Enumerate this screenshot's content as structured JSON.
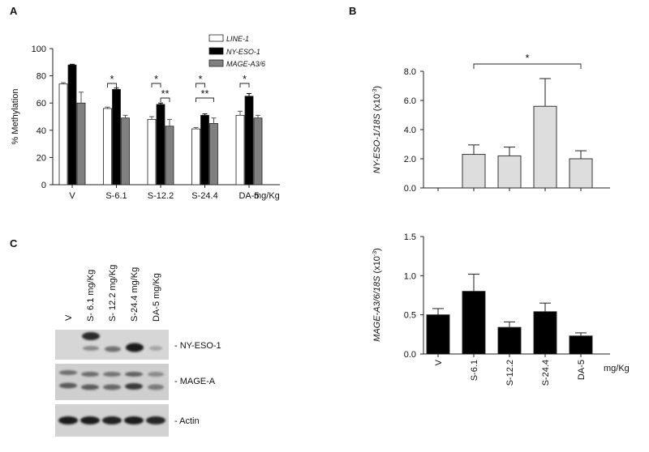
{
  "panels": {
    "a": "A",
    "b": "B",
    "c": "C"
  },
  "colors": {
    "line1": "#ffffff",
    "nyeso1": "#000000",
    "mage": "#808080",
    "panel_b": "#dddddd",
    "panel_b2": "#000000"
  },
  "chart_data": [
    {
      "id": "A",
      "type": "bar",
      "categories": [
        "V",
        "S-6.1",
        "S-12.2",
        "S-24.4",
        "DA-5"
      ],
      "series": [
        {
          "name": "LINE-1",
          "values": [
            74,
            56,
            48,
            41,
            51
          ],
          "errors": [
            1,
            1,
            2,
            1,
            3
          ]
        },
        {
          "name": "NY-ESO-1",
          "values": [
            88,
            70,
            59,
            51,
            65
          ],
          "errors": [
            0.5,
            1,
            1,
            1,
            2
          ]
        },
        {
          "name": "MAGE-A3/6",
          "values": [
            60,
            49,
            43,
            45,
            49
          ],
          "errors": [
            8,
            2,
            5,
            4,
            2
          ]
        }
      ],
      "ylabel": "% Methylation",
      "xunit": "mg/Kg",
      "ylim": [
        0,
        100
      ],
      "yticks": [
        "0",
        "20",
        "40",
        "60",
        "80",
        "100"
      ],
      "significance": [
        {
          "category": "S-6.1",
          "from": 0,
          "to": 1,
          "label": "*"
        },
        {
          "category": "S-12.2",
          "from": 0,
          "to": 1,
          "label": "*"
        },
        {
          "category": "S-12.2",
          "from": 1,
          "to": 2,
          "label": "**"
        },
        {
          "category": "S-24.4",
          "from": 0,
          "to": 1,
          "label": "*"
        },
        {
          "category": "S-24.4",
          "from": 0,
          "to": 2,
          "label": "**"
        },
        {
          "category": "DA-5",
          "from": 0,
          "to": 1,
          "label": "*"
        }
      ],
      "legend_position": "top-right"
    },
    {
      "id": "B-top",
      "type": "bar",
      "categories": [
        "V",
        "S-6.1",
        "S-12.2",
        "S-24.4",
        "DA-5"
      ],
      "values": [
        0,
        2.3,
        2.2,
        5.6,
        2.0
      ],
      "errors": [
        0,
        0.65,
        0.6,
        1.9,
        0.55
      ],
      "ylabel_main": "NY-ESO-1/18S",
      "ylabel_unit": "(x10",
      "ylabel_exp": "-3",
      "ylabel_close": ")",
      "ylim": [
        0,
        8
      ],
      "yticks": [
        "0.0",
        "2.0",
        "4.0",
        "6.0",
        "8.0"
      ],
      "significance": {
        "from": "S-6.1",
        "to": "DA-5",
        "label": "*"
      }
    },
    {
      "id": "B-bottom",
      "type": "bar",
      "categories": [
        "V",
        "S-6.1",
        "S-12.2",
        "S-24.4",
        "DA-5"
      ],
      "values": [
        0.5,
        0.8,
        0.34,
        0.54,
        0.23
      ],
      "errors": [
        0.08,
        0.22,
        0.07,
        0.11,
        0.04
      ],
      "ylabel_main": "MAGE-A3/6/18S",
      "ylabel_unit": "(x10",
      "ylabel_exp": "-3",
      "ylabel_close": ")",
      "xunit": "mg/Kg",
      "ylim": [
        0,
        1.5
      ],
      "yticks": [
        "0.0",
        "0.5",
        "1.0",
        "1.5"
      ]
    }
  ],
  "blot": {
    "lanes": [
      "V",
      "S- 6.1 mg/Kg",
      "S- 12.2 mg/Kg",
      "S-24.4 mg/Kg",
      "DA-5 mg/Kg"
    ],
    "rows": [
      {
        "label": "- NY-ESO-1"
      },
      {
        "label": "- MAGE-A"
      },
      {
        "label": "- Actin"
      }
    ]
  }
}
